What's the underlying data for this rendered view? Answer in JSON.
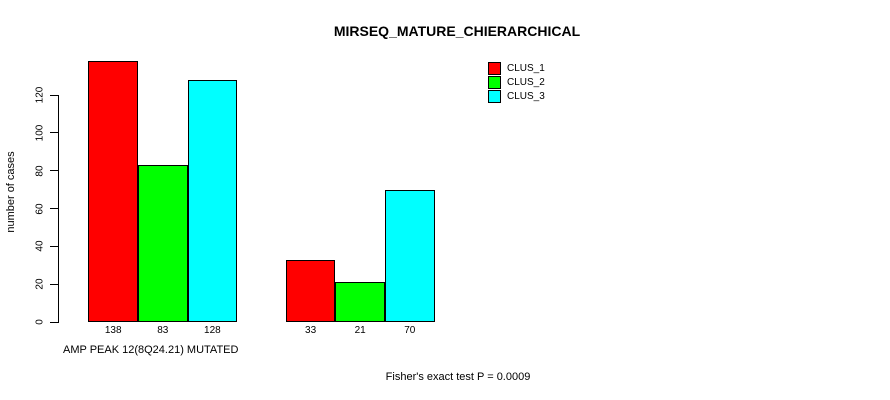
{
  "chart_data": {
    "type": "bar",
    "title": "MIRSEQ_MATURE_CHIERARCHICAL",
    "ylabel": "number of cases",
    "xlabel": "AMP PEAK 12(8Q24.21) MUTATED",
    "annotation": "Fisher's exact test P = 0.0009",
    "categories": [
      "",
      ""
    ],
    "series": [
      {
        "name": "CLUS_1",
        "color": "#ff0000",
        "values": [
          138,
          33
        ]
      },
      {
        "name": "CLUS_2",
        "color": "#00ff00",
        "values": [
          83,
          21
        ]
      },
      {
        "name": "CLUS_3",
        "color": "#00ffff",
        "values": [
          128,
          70
        ]
      }
    ],
    "yticks": [
      0,
      20,
      40,
      60,
      80,
      100,
      120
    ],
    "ylim": [
      0,
      140
    ],
    "grid": false,
    "bar_borders": "#000000",
    "text_color": "#000000",
    "background_color": "#ffffff",
    "legend_position": "top-right",
    "bar_value_labels_shown": true
  }
}
